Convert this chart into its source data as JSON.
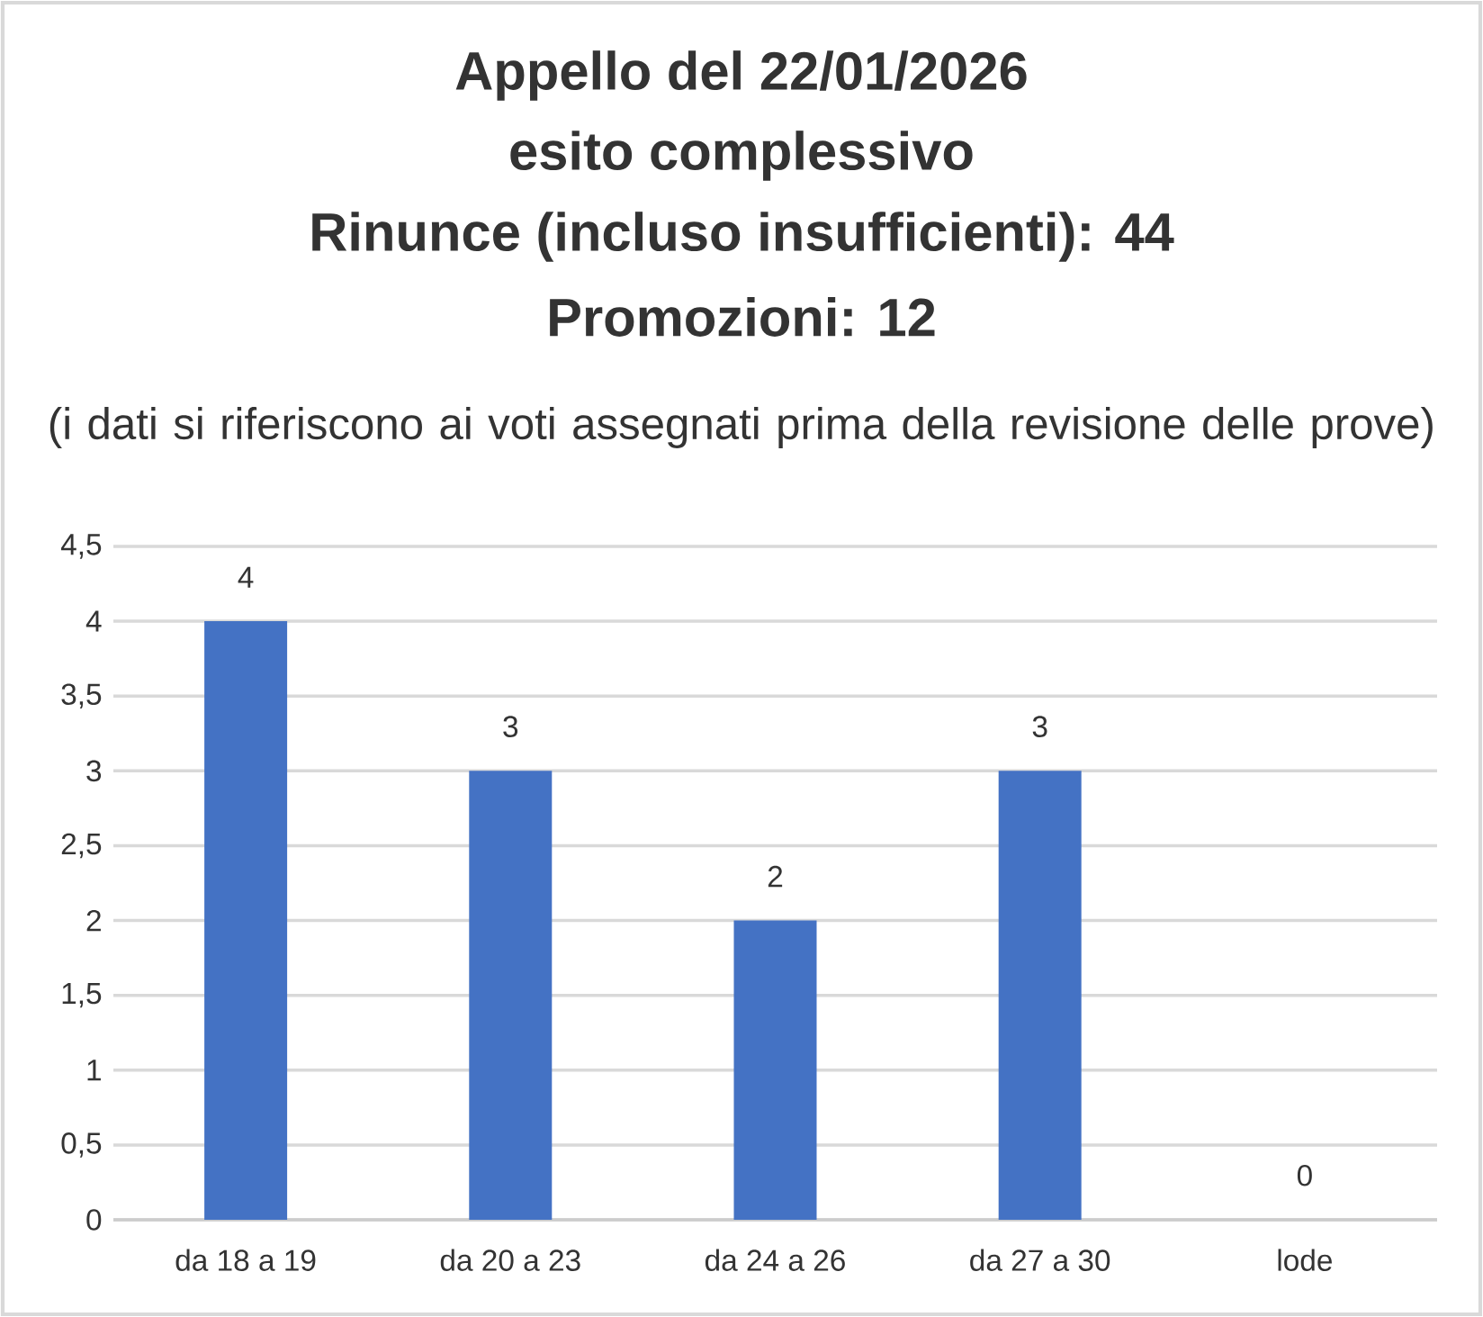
{
  "chart_data": {
    "type": "bar",
    "title": "Appello del 22/01/2026",
    "annotations": [
      "esito complessivo",
      "Rinunce (incluso insufficienti): 44",
      "Promozioni: 12"
    ],
    "subtitle": "(i dati si riferiscono ai voti assegnati prima della revisione delle prove)",
    "categories": [
      "da 18 a 19",
      "da 20 a 23",
      "da 24 a 26",
      "da 27 a 30",
      "lode"
    ],
    "values": [
      4,
      3,
      2,
      3,
      0
    ],
    "color": "#4472c4",
    "ylim": [
      0,
      4.5
    ],
    "yticks": [
      0,
      {
        "value": 0.5,
        "label": "0,5"
      },
      1,
      {
        "value": 1.5,
        "label": "1,5"
      },
      2,
      {
        "value": 2.5,
        "label": "2,5"
      },
      3,
      {
        "value": 3.5,
        "label": "3,5"
      },
      4,
      {
        "value": 4.5,
        "label": "4,5"
      }
    ],
    "grid": "y",
    "data_labels": true
  }
}
